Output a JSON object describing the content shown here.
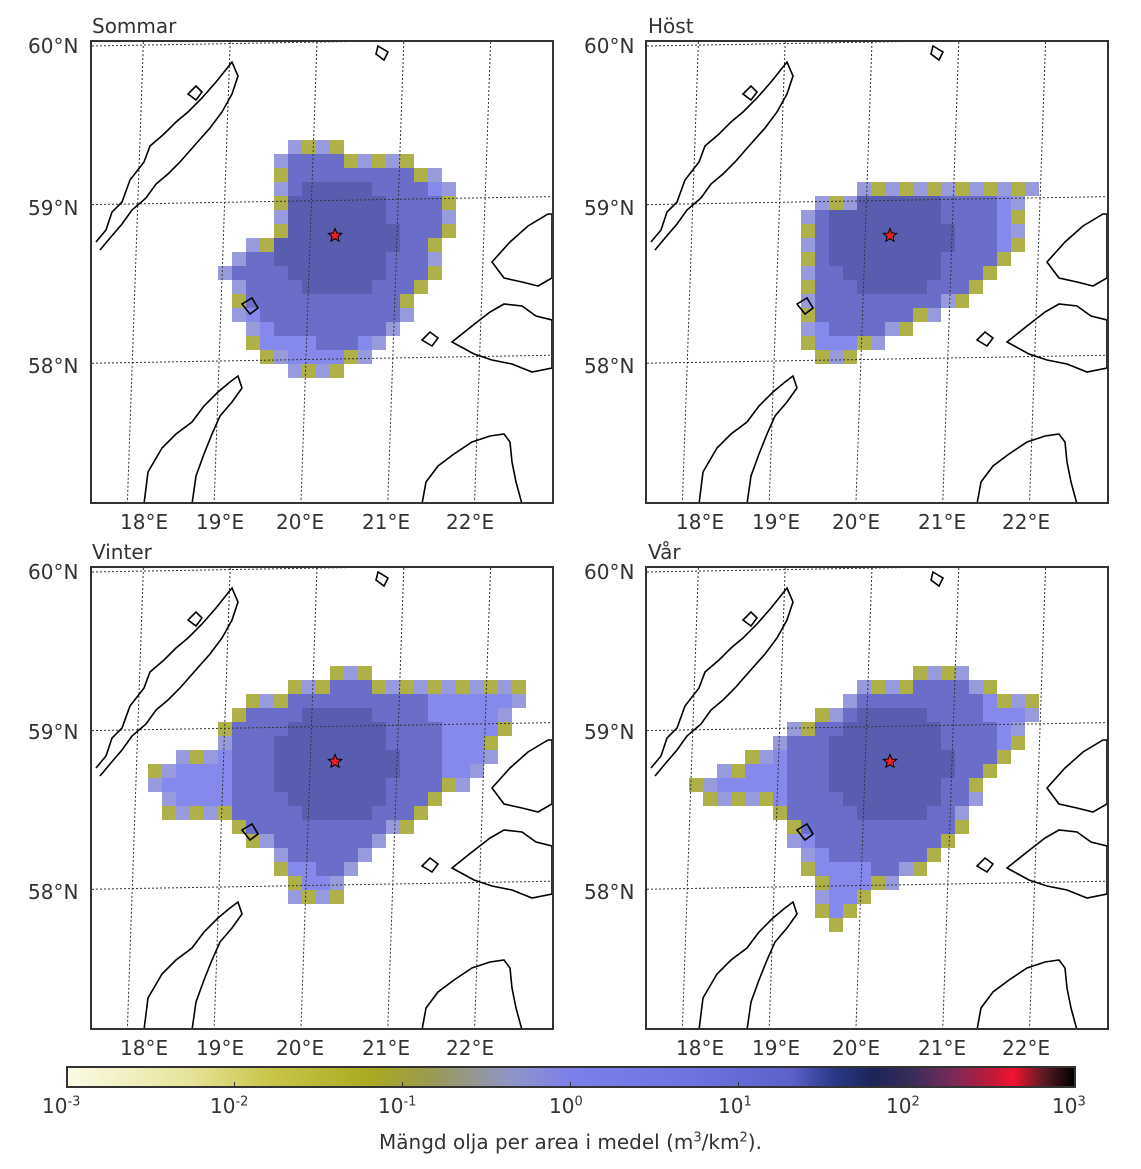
{
  "panels": [
    {
      "title": "Sommar",
      "extent": [
        [
          0.42,
          0.2
        ],
        [
          0.7,
          0.26
        ],
        [
          0.8,
          0.32
        ],
        [
          0.76,
          0.5
        ],
        [
          0.6,
          0.7
        ],
        [
          0.47,
          0.73
        ],
        [
          0.4,
          0.71
        ],
        [
          0.33,
          0.64
        ],
        [
          0.28,
          0.49
        ],
        [
          0.4,
          0.4
        ],
        [
          0.4,
          0.3
        ]
      ]
    },
    {
      "title": "Höst",
      "extent": [
        [
          0.32,
          0.36
        ],
        [
          0.5,
          0.31
        ],
        [
          0.65,
          0.29
        ],
        [
          0.84,
          0.31
        ],
        [
          0.82,
          0.43
        ],
        [
          0.74,
          0.53
        ],
        [
          0.56,
          0.64
        ],
        [
          0.4,
          0.71
        ],
        [
          0.34,
          0.66
        ],
        [
          0.32,
          0.5
        ]
      ]
    },
    {
      "title": "Vinter",
      "extent": [
        [
          0.3,
          0.3
        ],
        [
          0.55,
          0.22
        ],
        [
          0.7,
          0.24
        ],
        [
          0.95,
          0.26
        ],
        [
          0.88,
          0.42
        ],
        [
          0.72,
          0.54
        ],
        [
          0.62,
          0.62
        ],
        [
          0.52,
          0.73
        ],
        [
          0.44,
          0.72
        ],
        [
          0.38,
          0.62
        ],
        [
          0.3,
          0.56
        ],
        [
          0.15,
          0.54
        ],
        [
          0.12,
          0.44
        ],
        [
          0.28,
          0.38
        ]
      ]
    },
    {
      "title": "Vår",
      "extent": [
        [
          0.48,
          0.25
        ],
        [
          0.66,
          0.21
        ],
        [
          0.82,
          0.28
        ],
        [
          0.87,
          0.3
        ],
        [
          0.75,
          0.46
        ],
        [
          0.64,
          0.64
        ],
        [
          0.5,
          0.71
        ],
        [
          0.4,
          0.8
        ],
        [
          0.34,
          0.66
        ],
        [
          0.28,
          0.52
        ],
        [
          0.12,
          0.52
        ],
        [
          0.1,
          0.46
        ],
        [
          0.3,
          0.36
        ]
      ]
    }
  ],
  "axes": {
    "lat_labels": [
      "60°N",
      "59°N",
      "58°N"
    ],
    "lon_labels": [
      "18°E",
      "19°E",
      "20°E",
      "21°E",
      "22°E"
    ]
  },
  "release_point": {
    "lon": 20.3,
    "lat": 58.78
  },
  "colorbar": {
    "ticks": [
      "10",
      "10",
      "10",
      "10",
      "10",
      "10",
      "10"
    ],
    "exponents": [
      "-3",
      "-2",
      "-1",
      "0",
      "1",
      "2",
      "3"
    ],
    "label": "Mängd olja per area i medel (m",
    "label_sup1": "3",
    "label_mid": "/km",
    "label_sup2": "2",
    "label_end": ")."
  },
  "colors": {
    "low": "#aaaa20",
    "mid": "#7b7fea",
    "high": "#2a3a8a",
    "peak": "#f01430"
  }
}
